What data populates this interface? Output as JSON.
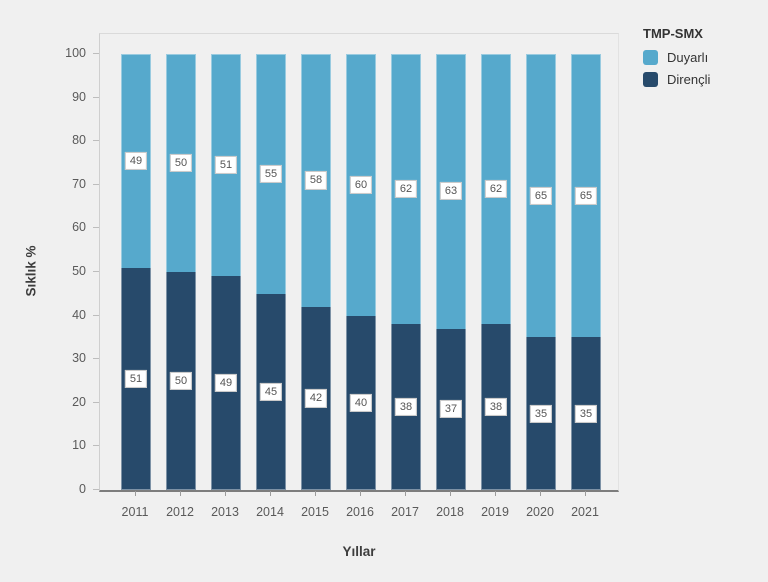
{
  "page": {
    "background_color": "#f0f0f0"
  },
  "legend": {
    "title": "TMP-SMX",
    "items": [
      {
        "label": "Duyarlı",
        "color": "#56A9CC"
      },
      {
        "label": "Dirençli",
        "color": "#274A6B"
      }
    ]
  },
  "chart_data": {
    "type": "bar",
    "stacked": true,
    "title": "",
    "xlabel": "Yıllar",
    "ylabel": "Sıklık %",
    "categories": [
      "2011",
      "2012",
      "2013",
      "2014",
      "2015",
      "2016",
      "2017",
      "2018",
      "2019",
      "2020",
      "2021"
    ],
    "series": [
      {
        "name": "Duyarlı",
        "color": "#56A9CC",
        "values": [
          49,
          50,
          51,
          55,
          58,
          60,
          62,
          63,
          62,
          65,
          65
        ]
      },
      {
        "name": "Dirençli",
        "color": "#274A6B",
        "values": [
          51,
          50,
          49,
          45,
          42,
          40,
          38,
          37,
          38,
          35,
          35
        ]
      }
    ],
    "value_labels_shown": true,
    "ylim": [
      0,
      100
    ],
    "yticks": [
      0,
      10,
      20,
      30,
      40,
      50,
      60,
      70,
      80,
      90,
      100
    ],
    "grid": false,
    "legend_position": "top-right"
  }
}
